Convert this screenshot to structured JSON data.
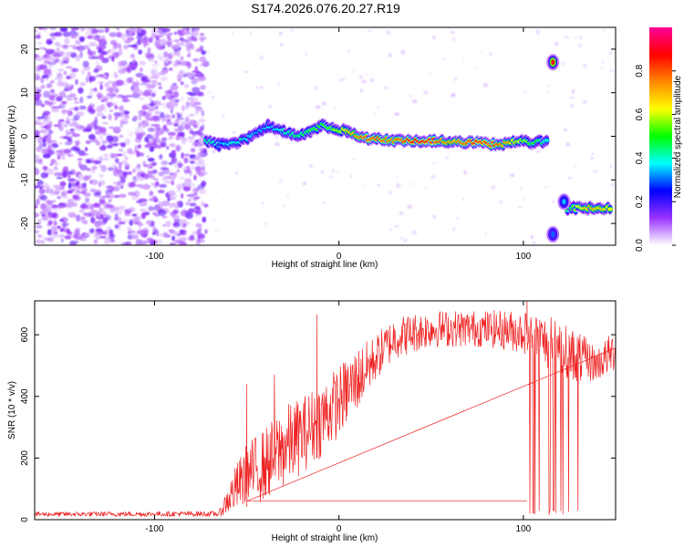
{
  "figure_title": "S174.2026.076.20.27.R19",
  "chart_data": [
    {
      "type": "heatmap",
      "title": "S174.2026.076.20.27.R19",
      "xlabel": "Height of straight line (km)",
      "ylabel": "Frequency (Hz)",
      "xlim": [
        -165,
        150
      ],
      "ylim": [
        -25,
        25
      ],
      "x_ticks": [
        -100,
        0,
        100
      ],
      "y_ticks": [
        -20,
        -10,
        0,
        10,
        20
      ],
      "colorbar": {
        "label": "Normalized spectral amplitude",
        "range": [
          0,
          1
        ],
        "ticks": [
          "0.0",
          "0.2",
          "0.4",
          "0.6",
          "0.8"
        ],
        "colors": [
          "#ffffff",
          "#9933ff",
          "#0000ff",
          "#00ffff",
          "#00ff00",
          "#ffff00",
          "#ff8800",
          "#ff0000",
          "#ff0099"
        ]
      },
      "noise_region_x": [
        -165,
        -72
      ],
      "signal_track": [
        {
          "x": -72,
          "f": -1.0,
          "a": 0.45
        },
        {
          "x": -65,
          "f": -2.0,
          "a": 0.35
        },
        {
          "x": -55,
          "f": -1.5,
          "a": 0.4
        },
        {
          "x": -45,
          "f": 0.5,
          "a": 0.35
        },
        {
          "x": -38,
          "f": 2.5,
          "a": 0.35
        },
        {
          "x": -30,
          "f": 1.0,
          "a": 0.4
        },
        {
          "x": -22,
          "f": 0.0,
          "a": 0.45
        },
        {
          "x": -15,
          "f": 1.0,
          "a": 0.5
        },
        {
          "x": -10,
          "f": 2.5,
          "a": 0.5
        },
        {
          "x": -3,
          "f": 2.0,
          "a": 0.55
        },
        {
          "x": 5,
          "f": 1.0,
          "a": 0.65
        },
        {
          "x": 15,
          "f": -0.5,
          "a": 0.8
        },
        {
          "x": 30,
          "f": -1.0,
          "a": 0.75
        },
        {
          "x": 45,
          "f": -1.0,
          "a": 0.9
        },
        {
          "x": 60,
          "f": -1.2,
          "a": 0.7
        },
        {
          "x": 75,
          "f": -1.5,
          "a": 0.85
        },
        {
          "x": 88,
          "f": -2.0,
          "a": 0.75
        },
        {
          "x": 98,
          "f": -1.0,
          "a": 0.6
        },
        {
          "x": 105,
          "f": -1.5,
          "a": 0.5
        },
        {
          "x": 113,
          "f": -1.0,
          "a": 0.4
        }
      ],
      "secondary_track": [
        {
          "x": 124,
          "f": -16.5,
          "a": 0.45
        },
        {
          "x": 135,
          "f": -16.5,
          "a": 0.7
        },
        {
          "x": 148,
          "f": -16.5,
          "a": 0.65
        }
      ],
      "blobs": [
        {
          "x": 116,
          "f": 17,
          "a": 0.9
        },
        {
          "x": 116,
          "f": -22.5,
          "a": 0.3
        },
        {
          "x": 122,
          "f": -15,
          "a": 0.35
        }
      ]
    },
    {
      "type": "line",
      "xlabel": "Height of straight line (km)",
      "ylabel": "SNR (10 * v/v)",
      "xlim": [
        -165,
        150
      ],
      "ylim": [
        0,
        710
      ],
      "x_ticks": [
        -100,
        0,
        100
      ],
      "y_ticks": [
        0,
        200,
        400,
        600
      ],
      "series": [
        {
          "name": "SNR",
          "color": "#ee2222",
          "envelope": [
            {
              "x": -165,
              "lo": 10,
              "hi": 25
            },
            {
              "x": -65,
              "lo": 10,
              "hi": 28
            },
            {
              "x": -58,
              "lo": 20,
              "hi": 150
            },
            {
              "x": -50,
              "lo": 40,
              "hi": 250
            },
            {
              "x": -40,
              "lo": 60,
              "hi": 300
            },
            {
              "x": -30,
              "lo": 100,
              "hi": 370
            },
            {
              "x": -20,
              "lo": 150,
              "hi": 400
            },
            {
              "x": -10,
              "lo": 200,
              "hi": 450
            },
            {
              "x": 0,
              "lo": 270,
              "hi": 500
            },
            {
              "x": 10,
              "lo": 350,
              "hi": 560
            },
            {
              "x": 20,
              "lo": 450,
              "hi": 600
            },
            {
              "x": 30,
              "lo": 520,
              "hi": 660
            },
            {
              "x": 50,
              "lo": 560,
              "hi": 680
            },
            {
              "x": 80,
              "lo": 560,
              "hi": 680
            },
            {
              "x": 100,
              "lo": 540,
              "hi": 680
            },
            {
              "x": 115,
              "lo": 480,
              "hi": 660
            },
            {
              "x": 132,
              "lo": 440,
              "hi": 600
            },
            {
              "x": 140,
              "lo": 450,
              "hi": 560
            },
            {
              "x": 150,
              "lo": 480,
              "hi": 620
            }
          ],
          "spikes": [
            {
              "x": -50,
              "y": 440
            },
            {
              "x": -35,
              "y": 470
            },
            {
              "x": -12,
              "y": 665
            },
            {
              "x": 102,
              "y": 710
            }
          ],
          "dropout_x_range": [
            103,
            130
          ],
          "dropout_min": 15
        }
      ]
    }
  ]
}
